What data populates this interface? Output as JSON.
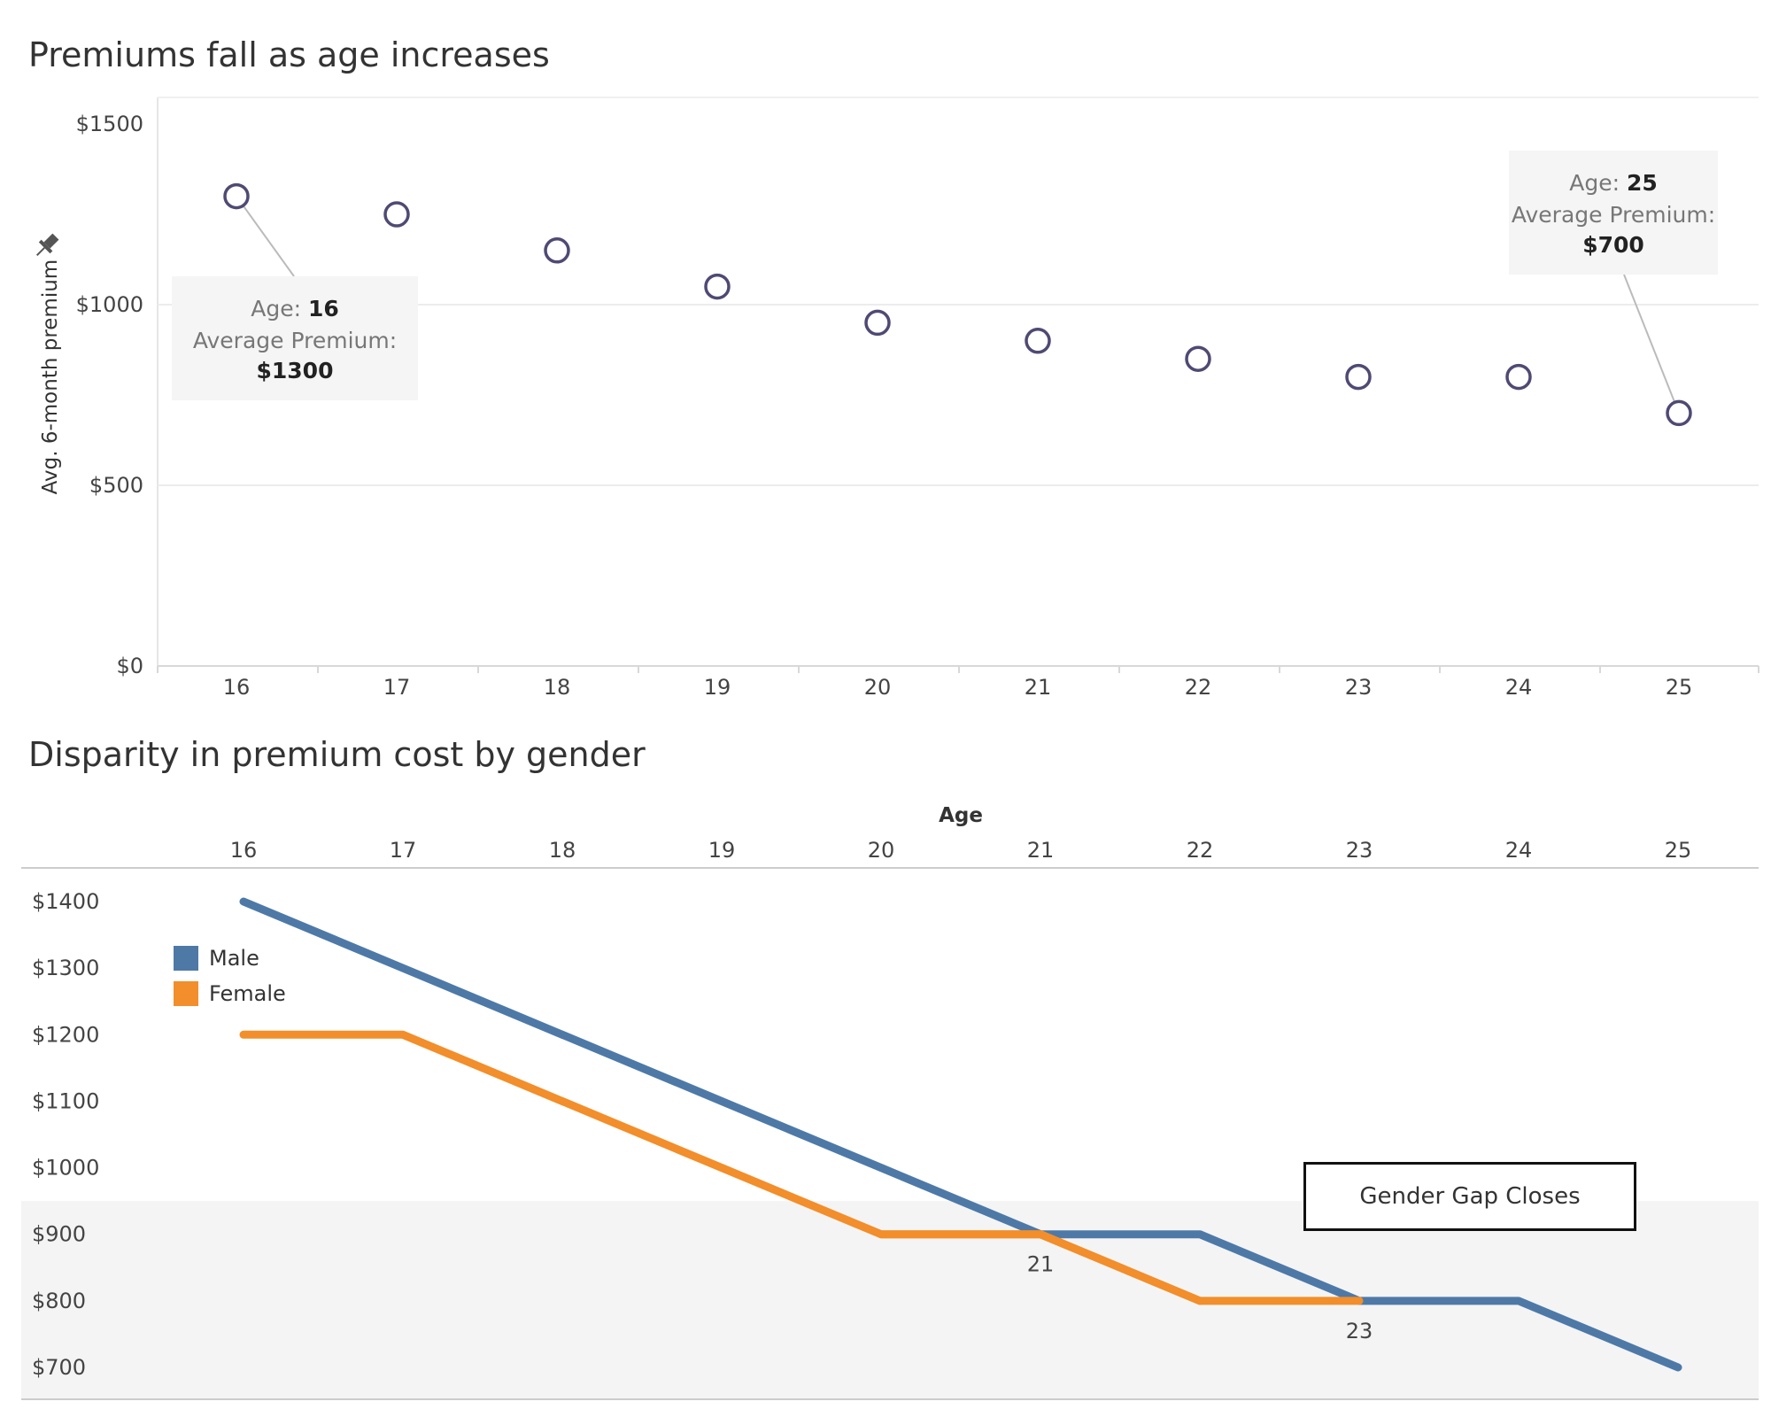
{
  "chart_data": [
    {
      "type": "scatter",
      "title": "Premiums fall as age increases",
      "ylabel": "Avg. 6-month premium",
      "xlabel": "",
      "x": [
        16,
        17,
        18,
        19,
        20,
        21,
        22,
        23,
        24,
        25
      ],
      "y": [
        1300,
        1250,
        1150,
        1050,
        950,
        900,
        850,
        800,
        800,
        700
      ],
      "yticks": [
        "$1500",
        "$1000",
        "$500",
        "$0"
      ],
      "ytick_values": [
        1500,
        1000,
        500,
        0
      ],
      "ylim": [
        0,
        1500
      ],
      "grid": "horizontal",
      "marker": "open-circle",
      "color": "#4f4a73",
      "annotations": [
        {
          "age_label": "Age:",
          "age": "16",
          "premium_label": "Average Premium:",
          "premium": "$1300",
          "x": 16,
          "y": 1300
        },
        {
          "age_label": "Age:",
          "age": "25",
          "premium_label": "Average Premium:",
          "premium": "$700",
          "x": 25,
          "y": 700
        }
      ]
    },
    {
      "type": "line",
      "title": "Disparity in premium cost by gender",
      "xlabel": "Age",
      "x_axis_position": "top",
      "x": [
        16,
        17,
        18,
        19,
        20,
        21,
        22,
        23,
        24,
        25
      ],
      "series": [
        {
          "name": "Male",
          "color": "#4e79a7",
          "values": [
            1400,
            1300,
            1200,
            1100,
            1000,
            900,
            900,
            800,
            800,
            700
          ]
        },
        {
          "name": "Female",
          "color": "#f28e2b",
          "values": [
            1200,
            1200,
            1100,
            1000,
            900,
            900,
            800,
            800,
            null,
            null
          ]
        }
      ],
      "yticks": [
        "$1400",
        "$1300",
        "$1200",
        "$1100",
        "$1000",
        "$900",
        "$800",
        "$700"
      ],
      "ytick_values": [
        1400,
        1300,
        1200,
        1100,
        1000,
        900,
        800,
        700
      ],
      "ylim": [
        700,
        1400
      ],
      "shaded_band": {
        "from": 700,
        "to": 950,
        "color": "#f4f4f4"
      },
      "legend_position": "top-left",
      "point_labels": [
        {
          "x": 21,
          "y": 900,
          "text": "21"
        },
        {
          "x": 23,
          "y": 800,
          "text": "23"
        }
      ],
      "callout": "Gender Gap Closes"
    }
  ]
}
